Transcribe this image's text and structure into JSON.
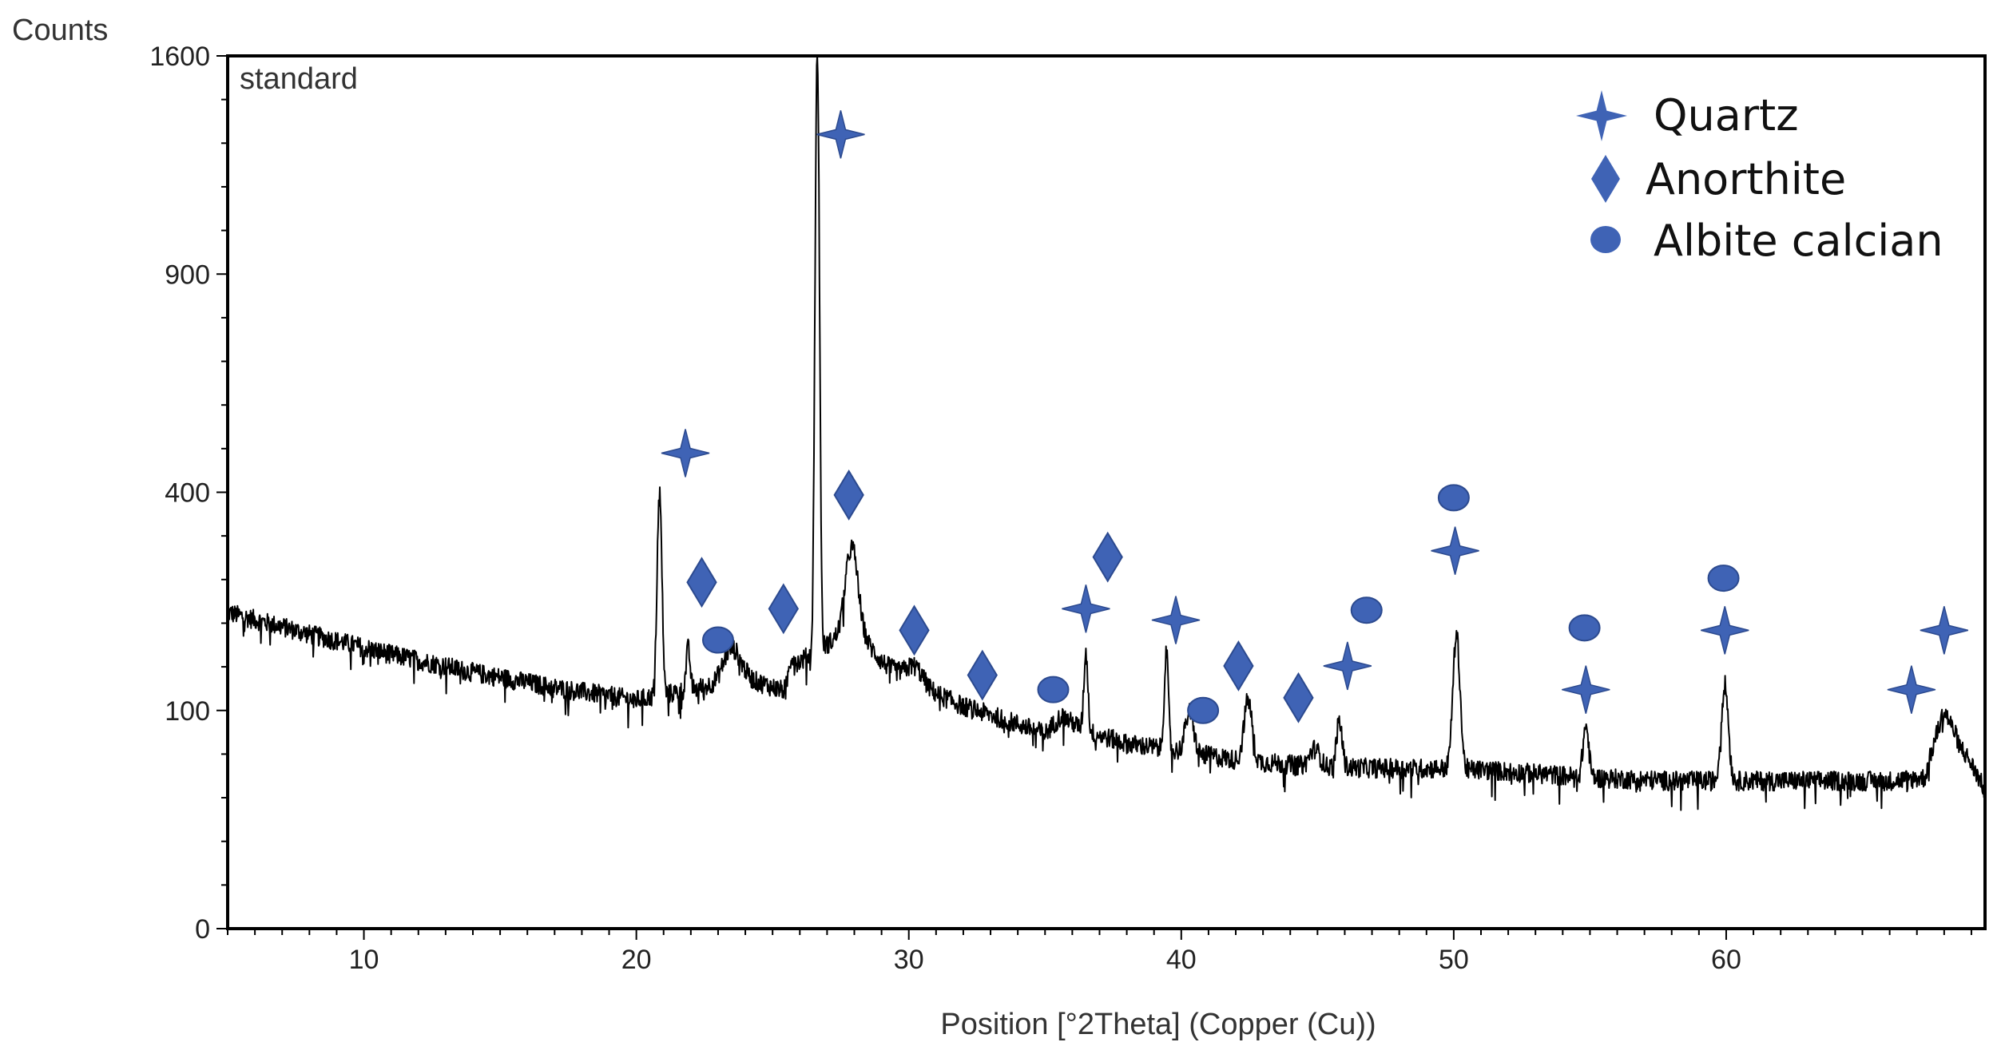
{
  "chart_data": {
    "type": "line",
    "y_axis_title": "Counts",
    "xlabel": "Position [°2Theta] (Copper (Cu))",
    "panel_label": "standard",
    "xlim": [
      5,
      69.5
    ],
    "x_ticks": [
      10,
      20,
      30,
      40,
      50,
      60
    ],
    "y_scale": "sqrt",
    "ylim": [
      0,
      1600
    ],
    "y_ticks": [
      0,
      100,
      400,
      900,
      1600
    ],
    "series_color": "#000000",
    "marker_color": "#3f63b5",
    "legend": [
      {
        "name": "Quartz",
        "marker": "four-point-star"
      },
      {
        "name": "Anorthite",
        "marker": "diamond"
      },
      {
        "name": "Albite calcian",
        "marker": "circle"
      }
    ],
    "background_curve": [
      [
        5,
        210
      ],
      [
        8,
        182
      ],
      [
        11,
        158
      ],
      [
        14,
        138
      ],
      [
        17,
        122
      ],
      [
        20,
        110
      ],
      [
        22,
        120
      ],
      [
        24,
        132
      ],
      [
        25.5,
        118
      ],
      [
        26,
        150
      ],
      [
        27,
        170
      ],
      [
        28,
        190
      ],
      [
        29,
        150
      ],
      [
        30,
        128
      ],
      [
        32,
        104
      ],
      [
        34,
        88
      ],
      [
        35,
        80
      ],
      [
        35.6,
        95
      ],
      [
        36.5,
        82
      ],
      [
        38,
        72
      ],
      [
        40,
        66
      ],
      [
        42,
        60
      ],
      [
        45,
        55
      ],
      [
        48,
        54
      ],
      [
        50,
        54
      ],
      [
        52,
        52
      ],
      [
        55,
        48
      ],
      [
        58,
        46
      ],
      [
        62,
        46
      ],
      [
        66,
        46
      ],
      [
        67.3,
        48
      ],
      [
        68,
        100
      ],
      [
        68.6,
        70
      ],
      [
        69.5,
        40
      ]
    ],
    "peaks": [
      {
        "x": 20.85,
        "y": 400,
        "w": 0.08
      },
      {
        "x": 21.9,
        "y": 165,
        "w": 0.07
      },
      {
        "x": 23.5,
        "y": 165,
        "w": 0.3
      },
      {
        "x": 25.7,
        "y": 155,
        "w": 0.12
      },
      {
        "x": 26.64,
        "y": 1600,
        "w": 0.07
      },
      {
        "x": 27.9,
        "y": 305,
        "w": 0.22
      },
      {
        "x": 30.2,
        "y": 145,
        "w": 0.3
      },
      {
        "x": 36.5,
        "y": 160,
        "w": 0.07
      },
      {
        "x": 39.45,
        "y": 160,
        "w": 0.07
      },
      {
        "x": 40.3,
        "y": 98,
        "w": 0.15
      },
      {
        "x": 42.45,
        "y": 110,
        "w": 0.14
      },
      {
        "x": 44.9,
        "y": 68,
        "w": 0.18
      },
      {
        "x": 45.8,
        "y": 90,
        "w": 0.1
      },
      {
        "x": 50.1,
        "y": 180,
        "w": 0.12
      },
      {
        "x": 54.85,
        "y": 86,
        "w": 0.1
      },
      {
        "x": 59.95,
        "y": 125,
        "w": 0.12
      }
    ],
    "markers": [
      {
        "type": "quartz",
        "x": 21.8,
        "y": 475
      },
      {
        "type": "quartz",
        "x": 27.5,
        "y": 1325
      },
      {
        "type": "quartz",
        "x": 36.5,
        "y": 215
      },
      {
        "type": "quartz",
        "x": 39.8,
        "y": 200
      },
      {
        "type": "quartz",
        "x": 46.1,
        "y": 145
      },
      {
        "type": "quartz",
        "x": 50.05,
        "y": 300
      },
      {
        "type": "quartz",
        "x": 54.85,
        "y": 120
      },
      {
        "type": "quartz",
        "x": 59.95,
        "y": 187
      },
      {
        "type": "quartz",
        "x": 66.8,
        "y": 120
      },
      {
        "type": "quartz",
        "x": 68.0,
        "y": 187
      },
      {
        "type": "anorthite",
        "x": 22.4,
        "y": 252
      },
      {
        "type": "anorthite",
        "x": 25.4,
        "y": 215
      },
      {
        "type": "anorthite",
        "x": 27.8,
        "y": 395
      },
      {
        "type": "anorthite",
        "x": 30.2,
        "y": 187
      },
      {
        "type": "anorthite",
        "x": 32.7,
        "y": 135
      },
      {
        "type": "anorthite",
        "x": 37.3,
        "y": 290
      },
      {
        "type": "anorthite",
        "x": 42.1,
        "y": 145
      },
      {
        "type": "anorthite",
        "x": 44.3,
        "y": 112
      },
      {
        "type": "albite",
        "x": 23.0,
        "y": 175
      },
      {
        "type": "albite",
        "x": 35.3,
        "y": 120
      },
      {
        "type": "albite",
        "x": 40.8,
        "y": 100
      },
      {
        "type": "albite",
        "x": 46.8,
        "y": 213
      },
      {
        "type": "albite",
        "x": 50.0,
        "y": 390
      },
      {
        "type": "albite",
        "x": 54.8,
        "y": 190
      },
      {
        "type": "albite",
        "x": 59.9,
        "y": 258
      }
    ]
  }
}
